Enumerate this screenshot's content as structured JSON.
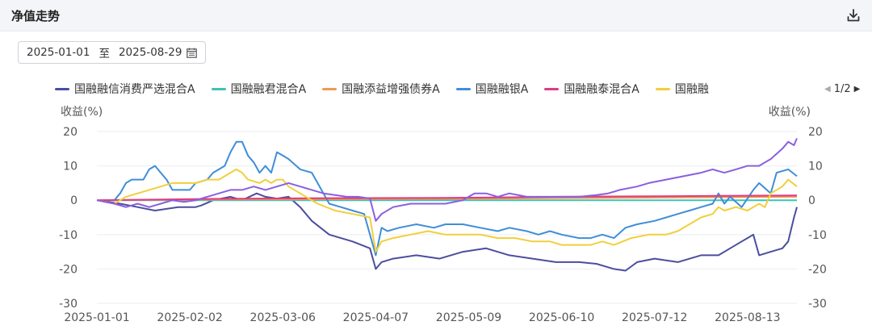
{
  "header": {
    "title": "净值走势",
    "download_icon": "download-icon"
  },
  "date_range": {
    "start": "2025-01-01",
    "separator": "至",
    "end": "2025-08-29",
    "icon": "calendar-icon"
  },
  "legend_pager": {
    "label": "1/2"
  },
  "chart_data": {
    "type": "line",
    "ylabel_left": "收益(%)",
    "ylabel_right": "收益(%)",
    "ylim": [
      -30,
      20
    ],
    "yticks": [
      20,
      10,
      0,
      -10,
      -20,
      -30
    ],
    "xlim": [
      0,
      241
    ],
    "xticks": [
      {
        "x": 0,
        "label": "2025-01-01"
      },
      {
        "x": 32,
        "label": "2025-02-02"
      },
      {
        "x": 64,
        "label": "2025-03-06"
      },
      {
        "x": 96,
        "label": "2025-04-07"
      },
      {
        "x": 128,
        "label": "2025-05-09"
      },
      {
        "x": 160,
        "label": "2025-06-10"
      },
      {
        "x": 192,
        "label": "2025-07-12"
      },
      {
        "x": 224,
        "label": "2025-08-13"
      }
    ],
    "grid": true,
    "series": [
      {
        "name": "国融融信消费严选混合A",
        "color": "#4b4e9e",
        "points": [
          [
            0,
            0
          ],
          [
            8,
            -1
          ],
          [
            14,
            -2
          ],
          [
            20,
            -3
          ],
          [
            28,
            -2
          ],
          [
            34,
            -2
          ],
          [
            36,
            -1.5
          ],
          [
            40,
            0
          ],
          [
            46,
            1
          ],
          [
            50,
            0
          ],
          [
            55,
            2
          ],
          [
            58,
            1
          ],
          [
            62,
            0.5
          ],
          [
            66,
            1
          ],
          [
            70,
            -2
          ],
          [
            74,
            -6
          ],
          [
            80,
            -10
          ],
          [
            88,
            -12
          ],
          [
            94,
            -14
          ],
          [
            96,
            -20
          ],
          [
            98,
            -18
          ],
          [
            102,
            -17
          ],
          [
            110,
            -16
          ],
          [
            118,
            -17
          ],
          [
            126,
            -15
          ],
          [
            134,
            -14
          ],
          [
            142,
            -16
          ],
          [
            150,
            -17
          ],
          [
            158,
            -18
          ],
          [
            166,
            -18
          ],
          [
            172,
            -18.5
          ],
          [
            178,
            -20
          ],
          [
            182,
            -20.5
          ],
          [
            186,
            -18
          ],
          [
            192,
            -17
          ],
          [
            200,
            -18
          ],
          [
            208,
            -16
          ],
          [
            214,
            -16
          ],
          [
            218,
            -14
          ],
          [
            222,
            -12
          ],
          [
            224,
            -11
          ],
          [
            226,
            -10
          ],
          [
            228,
            -16
          ],
          [
            232,
            -15
          ],
          [
            236,
            -14
          ],
          [
            238,
            -12
          ],
          [
            240,
            -5
          ],
          [
            241,
            -2
          ]
        ]
      },
      {
        "name": "国融融君混合A",
        "color": "#3cc3b6",
        "points": [
          [
            0,
            0
          ],
          [
            241,
            0
          ]
        ]
      },
      {
        "name": "国融添益增强债券A",
        "color": "#f09a4d",
        "points": [
          [
            0,
            0
          ],
          [
            40,
            0.2
          ],
          [
            80,
            0.3
          ],
          [
            120,
            0.4
          ],
          [
            160,
            0.6
          ],
          [
            200,
            0.8
          ],
          [
            241,
            1
          ]
        ]
      },
      {
        "name": "国融融银A",
        "color": "#3f8ed8",
        "points": [
          [
            0,
            0
          ],
          [
            6,
            0
          ],
          [
            8,
            2
          ],
          [
            10,
            5
          ],
          [
            12,
            6
          ],
          [
            16,
            6
          ],
          [
            18,
            9
          ],
          [
            20,
            10
          ],
          [
            22,
            8
          ],
          [
            24,
            6
          ],
          [
            26,
            3
          ],
          [
            30,
            3
          ],
          [
            32,
            3
          ],
          [
            34,
            5
          ],
          [
            38,
            6
          ],
          [
            40,
            8
          ],
          [
            44,
            10
          ],
          [
            46,
            14
          ],
          [
            48,
            17
          ],
          [
            50,
            17
          ],
          [
            52,
            13
          ],
          [
            54,
            11
          ],
          [
            56,
            8
          ],
          [
            58,
            10
          ],
          [
            60,
            8
          ],
          [
            62,
            14
          ],
          [
            64,
            13
          ],
          [
            66,
            12
          ],
          [
            70,
            9
          ],
          [
            74,
            8
          ],
          [
            76,
            5
          ],
          [
            78,
            2
          ],
          [
            80,
            -1
          ],
          [
            84,
            -2
          ],
          [
            88,
            -3
          ],
          [
            92,
            -4
          ],
          [
            96,
            -16
          ],
          [
            98,
            -8
          ],
          [
            100,
            -9
          ],
          [
            104,
            -8
          ],
          [
            110,
            -7
          ],
          [
            116,
            -8
          ],
          [
            120,
            -7
          ],
          [
            126,
            -7
          ],
          [
            132,
            -8
          ],
          [
            138,
            -9
          ],
          [
            142,
            -8
          ],
          [
            148,
            -9
          ],
          [
            152,
            -10
          ],
          [
            156,
            -9
          ],
          [
            160,
            -10
          ],
          [
            166,
            -11
          ],
          [
            170,
            -11
          ],
          [
            174,
            -10
          ],
          [
            178,
            -11
          ],
          [
            182,
            -8
          ],
          [
            186,
            -7
          ],
          [
            192,
            -6
          ],
          [
            196,
            -5
          ],
          [
            200,
            -4
          ],
          [
            204,
            -3
          ],
          [
            208,
            -2
          ],
          [
            212,
            -1
          ],
          [
            214,
            2
          ],
          [
            216,
            -1
          ],
          [
            218,
            1
          ],
          [
            222,
            -2
          ],
          [
            226,
            3
          ],
          [
            228,
            5
          ],
          [
            232,
            2
          ],
          [
            234,
            8
          ],
          [
            238,
            9
          ],
          [
            241,
            7
          ]
        ]
      },
      {
        "name": "国融融泰混合A",
        "color": "#de3b84",
        "points": [
          [
            0,
            0
          ],
          [
            40,
            0.4
          ],
          [
            80,
            0.6
          ],
          [
            120,
            0.7
          ],
          [
            160,
            1
          ],
          [
            200,
            1.2
          ],
          [
            241,
            1.4
          ]
        ]
      },
      {
        "name": "国融融",
        "color": "#f1cf3b",
        "points": [
          [
            0,
            0
          ],
          [
            6,
            -1
          ],
          [
            10,
            1
          ],
          [
            14,
            2
          ],
          [
            18,
            3
          ],
          [
            22,
            4
          ],
          [
            26,
            5
          ],
          [
            30,
            5
          ],
          [
            34,
            5
          ],
          [
            38,
            6
          ],
          [
            42,
            6
          ],
          [
            46,
            8
          ],
          [
            48,
            9
          ],
          [
            50,
            8
          ],
          [
            52,
            6
          ],
          [
            56,
            5
          ],
          [
            58,
            6
          ],
          [
            60,
            5
          ],
          [
            62,
            6
          ],
          [
            64,
            6
          ],
          [
            66,
            4
          ],
          [
            70,
            2
          ],
          [
            76,
            -1
          ],
          [
            82,
            -3
          ],
          [
            88,
            -4
          ],
          [
            94,
            -5
          ],
          [
            96,
            -15
          ],
          [
            98,
            -12
          ],
          [
            102,
            -11
          ],
          [
            108,
            -10
          ],
          [
            114,
            -9
          ],
          [
            120,
            -10
          ],
          [
            126,
            -10
          ],
          [
            132,
            -10
          ],
          [
            138,
            -11
          ],
          [
            144,
            -11
          ],
          [
            150,
            -12
          ],
          [
            156,
            -12
          ],
          [
            160,
            -13
          ],
          [
            166,
            -13
          ],
          [
            170,
            -13
          ],
          [
            174,
            -12
          ],
          [
            178,
            -13
          ],
          [
            184,
            -11
          ],
          [
            190,
            -10
          ],
          [
            196,
            -10
          ],
          [
            200,
            -9
          ],
          [
            204,
            -7
          ],
          [
            208,
            -5
          ],
          [
            212,
            -4
          ],
          [
            214,
            -2
          ],
          [
            216,
            -3
          ],
          [
            220,
            -2
          ],
          [
            224,
            -3
          ],
          [
            228,
            -1
          ],
          [
            230,
            -2
          ],
          [
            232,
            2
          ],
          [
            236,
            4
          ],
          [
            238,
            6
          ],
          [
            241,
            4
          ]
        ]
      },
      {
        "name": "",
        "color": "#8a5fe0",
        "points": [
          [
            0,
            0
          ],
          [
            6,
            -1
          ],
          [
            10,
            -2
          ],
          [
            14,
            -1
          ],
          [
            18,
            -2
          ],
          [
            22,
            -1
          ],
          [
            26,
            0
          ],
          [
            30,
            -0.5
          ],
          [
            34,
            0
          ],
          [
            38,
            1
          ],
          [
            42,
            2
          ],
          [
            46,
            3
          ],
          [
            50,
            3
          ],
          [
            54,
            4
          ],
          [
            58,
            3
          ],
          [
            62,
            4
          ],
          [
            66,
            5
          ],
          [
            70,
            4
          ],
          [
            74,
            3
          ],
          [
            78,
            2
          ],
          [
            82,
            1.5
          ],
          [
            86,
            1
          ],
          [
            90,
            1
          ],
          [
            94,
            0.5
          ],
          [
            96,
            -6
          ],
          [
            98,
            -4
          ],
          [
            102,
            -2
          ],
          [
            108,
            -1
          ],
          [
            114,
            -1
          ],
          [
            120,
            -1
          ],
          [
            126,
            0
          ],
          [
            128,
            1
          ],
          [
            130,
            2
          ],
          [
            134,
            2
          ],
          [
            138,
            1
          ],
          [
            142,
            2
          ],
          [
            148,
            1
          ],
          [
            154,
            1
          ],
          [
            160,
            1
          ],
          [
            166,
            1
          ],
          [
            172,
            1.5
          ],
          [
            176,
            2
          ],
          [
            180,
            3
          ],
          [
            186,
            4
          ],
          [
            190,
            5
          ],
          [
            196,
            6
          ],
          [
            202,
            7
          ],
          [
            208,
            8
          ],
          [
            212,
            9
          ],
          [
            216,
            8
          ],
          [
            220,
            9
          ],
          [
            224,
            10
          ],
          [
            228,
            10
          ],
          [
            230,
            11
          ],
          [
            232,
            12
          ],
          [
            236,
            15
          ],
          [
            238,
            17
          ],
          [
            240,
            16
          ],
          [
            241,
            18
          ]
        ]
      }
    ]
  }
}
